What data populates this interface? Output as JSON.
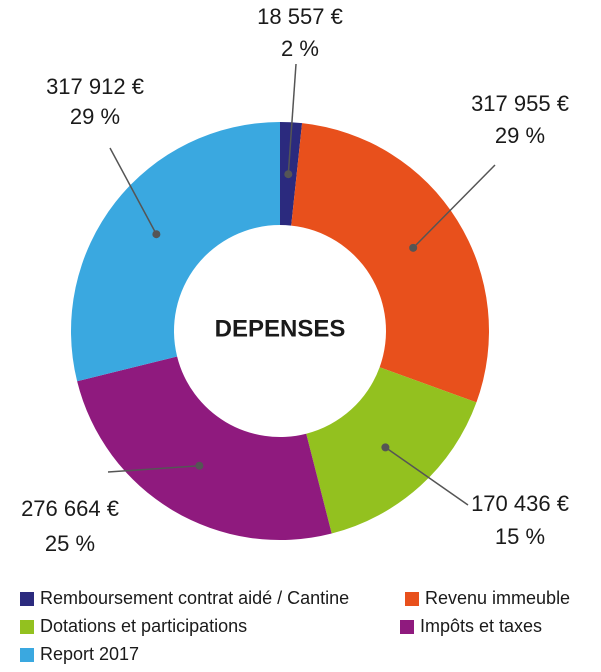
{
  "chart_data": {
    "type": "donut",
    "title": "DEPENSES",
    "categories": [
      "Remboursement contrat aidé / Cantine",
      "Revenu immeuble",
      "Dotations et participations",
      "Impôts et taxes",
      "Report 2017"
    ],
    "values": [
      18557,
      317955,
      170436,
      276664,
      317912
    ],
    "value_labels": [
      "18 557 €",
      "317 955 €",
      "170 436 €",
      "276 664 €",
      "317 912 €"
    ],
    "percent_labels": [
      "2 %",
      "29 %",
      "15 %",
      "25 %",
      "29 %"
    ],
    "colors": [
      "#2b2a7e",
      "#e8501c",
      "#93c11f",
      "#8f1a7e",
      "#3aa8e0"
    ],
    "legend": "bottom"
  }
}
